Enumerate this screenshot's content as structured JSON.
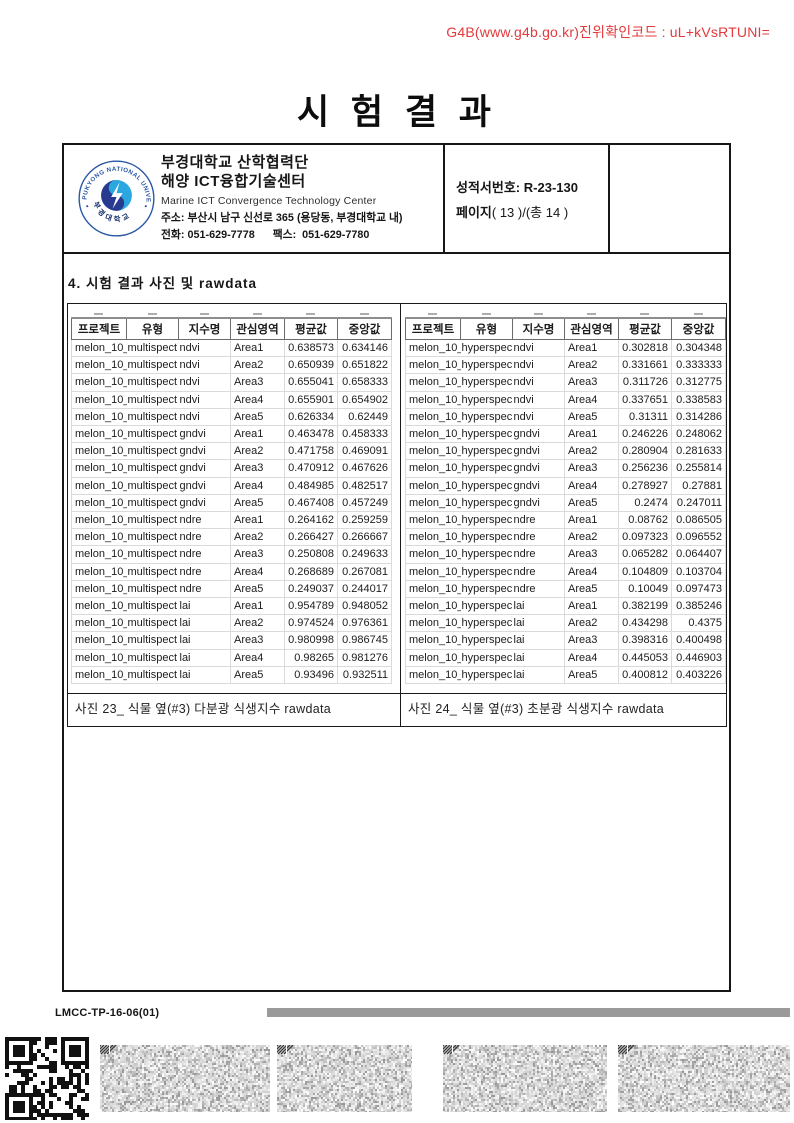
{
  "verification": {
    "text": "G4B(www.g4b.go.kr)진위확인코드 : uL+kVsRTUNI="
  },
  "title": "시 험 결 과",
  "header": {
    "org_name_line1": "부경대학교 산학협력단",
    "org_name_line2": "해양 ICT융합기술센터",
    "org_name_en": "Marine ICT Convergence Technology Center",
    "address": "주소: 부산시 남구 신선로 365 (용당동, 부경대학교 내)",
    "phone_fax": "전화: 051-629-7778      팩스:  051-629-7780",
    "report_no_label": "성적서번호:",
    "report_no": "R-23-130",
    "page_label": "페이지",
    "page_rest": "( 13 )/(총 14 )",
    "logo_ring_text_top": "PUKYONG NATIONAL UNIVERSITY",
    "logo_ring_text_bottom": "부경대학교"
  },
  "section_title": "4. 시험 결과 사진 및 rawdata",
  "tables": {
    "columns": [
      "프로젝트",
      "유형",
      "지수명",
      "관심영역",
      "평균값",
      "중앙값"
    ],
    "left": {
      "caption": "사진 23_ 식물 옆(#3) 다분광 식생지수 rawdata",
      "rows": [
        [
          "melon_10_",
          "multispect",
          "ndvi",
          "Area1",
          "0.638573",
          "0.634146"
        ],
        [
          "melon_10_",
          "multispect",
          "ndvi",
          "Area2",
          "0.650939",
          "0.651822"
        ],
        [
          "melon_10_",
          "multispect",
          "ndvi",
          "Area3",
          "0.655041",
          "0.658333"
        ],
        [
          "melon_10_",
          "multispect",
          "ndvi",
          "Area4",
          "0.655901",
          "0.654902"
        ],
        [
          "melon_10_",
          "multispect",
          "ndvi",
          "Area5",
          "0.626334",
          "0.62449"
        ],
        [
          "melon_10_",
          "multispect",
          "gndvi",
          "Area1",
          "0.463478",
          "0.458333"
        ],
        [
          "melon_10_",
          "multispect",
          "gndvi",
          "Area2",
          "0.471758",
          "0.469091"
        ],
        [
          "melon_10_",
          "multispect",
          "gndvi",
          "Area3",
          "0.470912",
          "0.467626"
        ],
        [
          "melon_10_",
          "multispect",
          "gndvi",
          "Area4",
          "0.484985",
          "0.482517"
        ],
        [
          "melon_10_",
          "multispect",
          "gndvi",
          "Area5",
          "0.467408",
          "0.457249"
        ],
        [
          "melon_10_",
          "multispect",
          "ndre",
          "Area1",
          "0.264162",
          "0.259259"
        ],
        [
          "melon_10_",
          "multispect",
          "ndre",
          "Area2",
          "0.266427",
          "0.266667"
        ],
        [
          "melon_10_",
          "multispect",
          "ndre",
          "Area3",
          "0.250808",
          "0.249633"
        ],
        [
          "melon_10_",
          "multispect",
          "ndre",
          "Area4",
          "0.268689",
          "0.267081"
        ],
        [
          "melon_10_",
          "multispect",
          "ndre",
          "Area5",
          "0.249037",
          "0.244017"
        ],
        [
          "melon_10_",
          "multispect",
          "lai",
          "Area1",
          "0.954789",
          "0.948052"
        ],
        [
          "melon_10_",
          "multispect",
          "lai",
          "Area2",
          "0.974524",
          "0.976361"
        ],
        [
          "melon_10_",
          "multispect",
          "lai",
          "Area3",
          "0.980998",
          "0.986745"
        ],
        [
          "melon_10_",
          "multispect",
          "lai",
          "Area4",
          "0.98265",
          "0.981276"
        ],
        [
          "melon_10_",
          "multispect",
          "lai",
          "Area5",
          "0.93496",
          "0.932511"
        ]
      ]
    },
    "right": {
      "caption": "사진 24_ 식물 옆(#3) 초분광 식생지수 rawdata",
      "rows": [
        [
          "melon_10_",
          "hyperspec",
          "ndvi",
          "Area1",
          "0.302818",
          "0.304348"
        ],
        [
          "melon_10_",
          "hyperspec",
          "ndvi",
          "Area2",
          "0.331661",
          "0.333333"
        ],
        [
          "melon_10_",
          "hyperspec",
          "ndvi",
          "Area3",
          "0.311726",
          "0.312775"
        ],
        [
          "melon_10_",
          "hyperspec",
          "ndvi",
          "Area4",
          "0.337651",
          "0.338583"
        ],
        [
          "melon_10_",
          "hyperspec",
          "ndvi",
          "Area5",
          "0.31311",
          "0.314286"
        ],
        [
          "melon_10_",
          "hyperspec",
          "gndvi",
          "Area1",
          "0.246226",
          "0.248062"
        ],
        [
          "melon_10_",
          "hyperspec",
          "gndvi",
          "Area2",
          "0.280904",
          "0.281633"
        ],
        [
          "melon_10_",
          "hyperspec",
          "gndvi",
          "Area3",
          "0.256236",
          "0.255814"
        ],
        [
          "melon_10_",
          "hyperspec",
          "gndvi",
          "Area4",
          "0.278927",
          "0.27881"
        ],
        [
          "melon_10_",
          "hyperspec",
          "gndvi",
          "Area5",
          "0.2474",
          "0.247011"
        ],
        [
          "melon_10_",
          "hyperspec",
          "ndre",
          "Area1",
          "0.08762",
          "0.086505"
        ],
        [
          "melon_10_",
          "hyperspec",
          "ndre",
          "Area2",
          "0.097323",
          "0.096552"
        ],
        [
          "melon_10_",
          "hyperspec",
          "ndre",
          "Area3",
          "0.065282",
          "0.064407"
        ],
        [
          "melon_10_",
          "hyperspec",
          "ndre",
          "Area4",
          "0.104809",
          "0.103704"
        ],
        [
          "melon_10_",
          "hyperspec",
          "ndre",
          "Area5",
          "0.10049",
          "0.097473"
        ],
        [
          "melon_10_",
          "hyperspec",
          "lai",
          "Area1",
          "0.382199",
          "0.385246"
        ],
        [
          "melon_10_",
          "hyperspec",
          "lai",
          "Area2",
          "0.434298",
          "0.4375"
        ],
        [
          "melon_10_",
          "hyperspec",
          "lai",
          "Area3",
          "0.398316",
          "0.400498"
        ],
        [
          "melon_10_",
          "hyperspec",
          "lai",
          "Area4",
          "0.445053",
          "0.446903"
        ],
        [
          "melon_10_",
          "hyperspec",
          "lai",
          "Area5",
          "0.400812",
          "0.403226"
        ]
      ]
    }
  },
  "footer": {
    "doc_code": "LMCC-TP-16-06(01)"
  },
  "colors": {
    "verification_red": "#e4393c",
    "border_black": "#161616",
    "excel_gridline": "#dadada",
    "logo_ring_blue": "#2a57a5",
    "logo_dark_blue": "#283a8f",
    "logo_light_blue": "#2aa7df",
    "footer_bar_gray": "#9a9a9a"
  }
}
